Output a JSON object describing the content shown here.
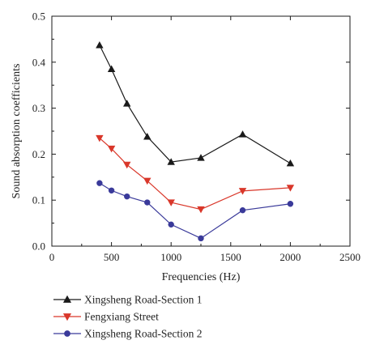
{
  "chart_data": {
    "type": "line",
    "xlabel": "Frequencies (Hz)",
    "ylabel": "Sound absorption coefficients",
    "xlim": [
      0,
      2500
    ],
    "ylim": [
      0,
      0.5
    ],
    "xticks": [
      0,
      500,
      1000,
      1500,
      2000,
      2500
    ],
    "yticks": [
      0.0,
      0.1,
      0.2,
      0.3,
      0.4,
      0.5
    ],
    "xtick_labels": [
      "0",
      "500",
      "1000",
      "1500",
      "2000",
      "2500"
    ],
    "ytick_labels": [
      "0.0",
      "0.1",
      "0.2",
      "0.3",
      "0.4",
      "0.5"
    ],
    "grid": false,
    "legend_position": "bottom-left, below plot",
    "series": [
      {
        "name": "Xingsheng Road-Section 1",
        "color": "#1a1a1a",
        "marker": "triangle-up",
        "x": [
          400,
          500,
          630,
          800,
          1000,
          1250,
          1600,
          2000
        ],
        "y": [
          0.437,
          0.385,
          0.31,
          0.238,
          0.183,
          0.192,
          0.243,
          0.18
        ]
      },
      {
        "name": "Fengxiang Street",
        "color": "#d9372a",
        "marker": "triangle-down",
        "x": [
          400,
          500,
          630,
          800,
          1000,
          1250,
          1600,
          2000
        ],
        "y": [
          0.235,
          0.212,
          0.177,
          0.142,
          0.095,
          0.08,
          0.12,
          0.127
        ]
      },
      {
        "name": "Xingsheng Road-Section 2",
        "color": "#3a3a9a",
        "marker": "circle",
        "x": [
          400,
          500,
          630,
          800,
          1000,
          1250,
          1600,
          2000
        ],
        "y": [
          0.137,
          0.121,
          0.108,
          0.095,
          0.047,
          0.017,
          0.078,
          0.092
        ]
      }
    ]
  }
}
